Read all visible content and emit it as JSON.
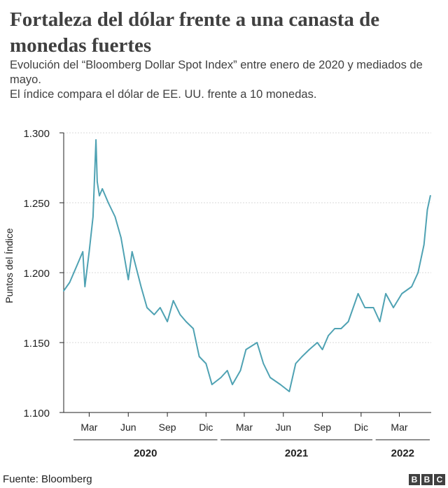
{
  "header": {
    "title": "Fortaleza del dólar frente a una canasta de monedas fuertes",
    "subtitle_line1": "Evolución del “Bloomberg Dollar Spot Index” entre enero de 2020 y mediados de mayo.",
    "subtitle_line2": "El índice compara el dólar de EE. UU. frente a 10 monedas."
  },
  "footer": {
    "source": "Fuente: Bloomberg",
    "logo_letters": [
      "B",
      "B",
      "C"
    ]
  },
  "colors": {
    "line": "#4fa2b3",
    "grid": "#d9d9d9",
    "axis": "#222222",
    "text": "#404040"
  },
  "chart_data": {
    "type": "line",
    "title": "Fortaleza del dólar frente a una canasta de monedas fuertes",
    "xlabel": "",
    "ylabel": "Puntos del Índice",
    "ylim": [
      1.1,
      1.3
    ],
    "xlim": [
      "2020-01-01",
      "2022-05-15"
    ],
    "y_ticks": [
      1.1,
      1.15,
      1.2,
      1.25,
      1.3
    ],
    "y_tick_labels": [
      "1.100",
      "1.150",
      "1.200",
      "1.250",
      "1.300"
    ],
    "x_ticks": [
      {
        "date": "2020-03-01",
        "label": "Mar"
      },
      {
        "date": "2020-06-01",
        "label": "Jun"
      },
      {
        "date": "2020-09-01",
        "label": "Sep"
      },
      {
        "date": "2020-12-01",
        "label": "Dic"
      },
      {
        "date": "2021-03-01",
        "label": "Mar"
      },
      {
        "date": "2021-06-01",
        "label": "Jun"
      },
      {
        "date": "2021-09-01",
        "label": "Sep"
      },
      {
        "date": "2021-12-01",
        "label": "Dic"
      },
      {
        "date": "2022-03-01",
        "label": "Mar"
      }
    ],
    "year_groups": [
      {
        "label": "2020",
        "start": "2020-01-01",
        "end": "2020-12-31"
      },
      {
        "label": "2021",
        "start": "2021-01-01",
        "end": "2021-12-31"
      },
      {
        "label": "2022",
        "start": "2022-01-01",
        "end": "2022-05-15"
      }
    ],
    "grid": true,
    "series": [
      {
        "x": [
          "2020-01-01",
          "2020-01-15",
          "2020-02-01",
          "2020-02-15",
          "2020-02-20",
          "2020-03-01",
          "2020-03-10",
          "2020-03-17",
          "2020-03-20",
          "2020-03-25",
          "2020-04-01",
          "2020-04-15",
          "2020-05-01",
          "2020-05-15",
          "2020-06-01",
          "2020-06-10",
          "2020-07-01",
          "2020-07-15",
          "2020-08-01",
          "2020-08-15",
          "2020-09-01",
          "2020-09-15",
          "2020-10-01",
          "2020-10-15",
          "2020-11-01",
          "2020-11-15",
          "2020-12-01",
          "2020-12-15",
          "2021-01-05",
          "2021-01-20",
          "2021-02-01",
          "2021-02-20",
          "2021-03-05",
          "2021-03-31",
          "2021-04-15",
          "2021-05-01",
          "2021-05-25",
          "2021-06-15",
          "2021-06-30",
          "2021-07-15",
          "2021-08-01",
          "2021-08-20",
          "2021-09-01",
          "2021-09-15",
          "2021-09-30",
          "2021-10-15",
          "2021-11-01",
          "2021-11-24",
          "2021-12-10",
          "2021-12-30",
          "2022-01-14",
          "2022-01-28",
          "2022-02-15",
          "2022-03-07",
          "2022-03-30",
          "2022-04-14",
          "2022-04-28",
          "2022-05-06",
          "2022-05-13"
        ],
        "values": [
          1.187,
          1.193,
          1.205,
          1.215,
          1.19,
          1.215,
          1.24,
          1.295,
          1.265,
          1.255,
          1.26,
          1.25,
          1.24,
          1.225,
          1.195,
          1.215,
          1.19,
          1.175,
          1.17,
          1.175,
          1.165,
          1.18,
          1.17,
          1.165,
          1.16,
          1.14,
          1.135,
          1.12,
          1.125,
          1.13,
          1.12,
          1.13,
          1.145,
          1.15,
          1.135,
          1.125,
          1.12,
          1.115,
          1.135,
          1.14,
          1.145,
          1.15,
          1.145,
          1.155,
          1.16,
          1.16,
          1.165,
          1.185,
          1.175,
          1.175,
          1.165,
          1.185,
          1.175,
          1.185,
          1.19,
          1.2,
          1.22,
          1.245,
          1.255
        ]
      }
    ]
  }
}
